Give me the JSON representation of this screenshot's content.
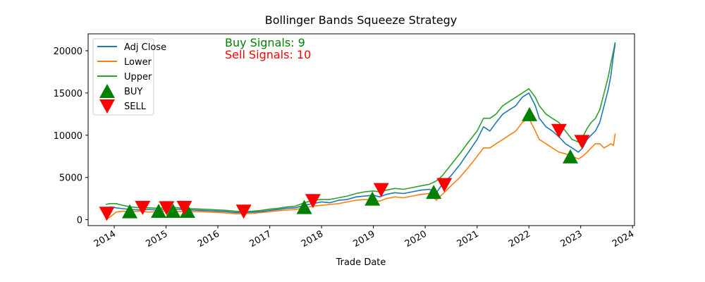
{
  "chart_data": {
    "type": "line",
    "title": "Bollinger Bands Squeeze Strategy",
    "xlabel": "Trade Date",
    "ylabel": "",
    "xlim": [
      "2013-07-01",
      "2024-01-15"
    ],
    "ylim": [
      -700,
      22000
    ],
    "x_ticks": [
      "2014",
      "2015",
      "2016",
      "2017",
      "2018",
      "2019",
      "2020",
      "2021",
      "2022",
      "2023",
      "2024"
    ],
    "y_ticks": [
      0,
      5000,
      10000,
      15000,
      20000
    ],
    "grid": false,
    "legend_placement": "top-left",
    "colors": {
      "adj_close": "#1f77b4",
      "lower": "#ff7f0e",
      "upper": "#2ca02c",
      "buy": "#008000",
      "sell": "#ff0000"
    },
    "series": [
      {
        "name": "Adj Close",
        "x": [
          "2013-11-01",
          "2013-12-01",
          "2014-01-15",
          "2014-03-01",
          "2014-05-01",
          "2014-07-01",
          "2014-09-01",
          "2014-11-01",
          "2015-01-01",
          "2015-03-01",
          "2015-05-01",
          "2015-07-01",
          "2015-09-01",
          "2015-11-01",
          "2016-01-01",
          "2016-03-01",
          "2016-05-01",
          "2016-07-01",
          "2016-09-01",
          "2016-11-01",
          "2017-01-01",
          "2017-03-01",
          "2017-05-01",
          "2017-07-01",
          "2017-09-01",
          "2017-11-01",
          "2018-01-01",
          "2018-03-01",
          "2018-05-01",
          "2018-07-01",
          "2018-09-01",
          "2018-11-01",
          "2019-01-01",
          "2019-02-15",
          "2019-04-01",
          "2019-06-01",
          "2019-08-01",
          "2019-10-01",
          "2019-12-01",
          "2020-02-01",
          "2020-03-20",
          "2020-05-01",
          "2020-07-01",
          "2020-09-01",
          "2020-11-01",
          "2021-01-01",
          "2021-02-15",
          "2021-04-01",
          "2021-05-15",
          "2021-07-01",
          "2021-08-15",
          "2021-10-01",
          "2021-11-15",
          "2022-01-01",
          "2022-02-15",
          "2022-03-15",
          "2022-05-01",
          "2022-06-15",
          "2022-08-01",
          "2022-09-15",
          "2022-11-01",
          "2022-12-15",
          "2023-01-15",
          "2023-02-15",
          "2023-03-15",
          "2023-04-15",
          "2023-05-15",
          "2023-06-15",
          "2023-07-15",
          "2023-08-01",
          "2023-08-20",
          "2023-09-01"
        ],
        "values": [
          800,
          1500,
          1400,
          1300,
          1200,
          1150,
          1200,
          1150,
          1200,
          1250,
          1200,
          1150,
          1100,
          1050,
          1000,
          950,
          850,
          850,
          900,
          950,
          1100,
          1200,
          1350,
          1400,
          1700,
          1900,
          2100,
          2000,
          2300,
          2400,
          2700,
          2800,
          2900,
          2700,
          3000,
          3200,
          3100,
          3300,
          3500,
          3600,
          3200,
          4200,
          5200,
          6500,
          8000,
          9500,
          11000,
          10500,
          11500,
          12500,
          13000,
          13500,
          14500,
          15000,
          13500,
          12000,
          11000,
          10500,
          9800,
          9000,
          8500,
          8000,
          8500,
          9500,
          10000,
          10500,
          11500,
          13500,
          15500,
          17000,
          19500,
          20800
        ]
      },
      {
        "name": "Lower",
        "x": [
          "2013-11-01",
          "2013-12-01",
          "2014-01-15",
          "2014-03-01",
          "2014-05-01",
          "2014-07-01",
          "2014-09-01",
          "2014-11-01",
          "2015-01-01",
          "2015-03-01",
          "2015-05-01",
          "2015-07-01",
          "2015-09-01",
          "2015-11-01",
          "2016-01-01",
          "2016-03-01",
          "2016-05-01",
          "2016-07-01",
          "2016-09-01",
          "2016-11-01",
          "2017-01-01",
          "2017-03-01",
          "2017-05-01",
          "2017-07-01",
          "2017-09-01",
          "2017-11-01",
          "2018-01-01",
          "2018-03-01",
          "2018-05-01",
          "2018-07-01",
          "2018-09-01",
          "2018-11-01",
          "2019-01-01",
          "2019-02-15",
          "2019-04-01",
          "2019-06-01",
          "2019-08-01",
          "2019-10-01",
          "2019-12-01",
          "2020-02-01",
          "2020-03-20",
          "2020-05-01",
          "2020-07-01",
          "2020-09-01",
          "2020-11-01",
          "2021-01-01",
          "2021-02-15",
          "2021-04-01",
          "2021-05-15",
          "2021-07-01",
          "2021-08-15",
          "2021-10-01",
          "2021-11-15",
          "2022-01-01",
          "2022-02-15",
          "2022-03-15",
          "2022-05-01",
          "2022-06-15",
          "2022-08-01",
          "2022-09-15",
          "2022-11-01",
          "2022-12-15",
          "2023-01-15",
          "2023-02-15",
          "2023-03-15",
          "2023-04-15",
          "2023-05-15",
          "2023-06-15",
          "2023-07-15",
          "2023-08-01",
          "2023-08-20",
          "2023-09-01"
        ],
        "values": [
          0,
          300,
          900,
          1000,
          950,
          1000,
          900,
          950,
          1000,
          1000,
          950,
          950,
          950,
          900,
          850,
          800,
          700,
          700,
          750,
          850,
          950,
          1050,
          1150,
          1200,
          1400,
          1600,
          1700,
          1800,
          1900,
          2100,
          2300,
          2400,
          2300,
          2200,
          2500,
          2700,
          2600,
          2800,
          3000,
          3100,
          2300,
          3000,
          4000,
          5000,
          6200,
          7500,
          8500,
          8500,
          9000,
          9500,
          10000,
          10500,
          11500,
          12000,
          10500,
          9500,
          9000,
          8500,
          8000,
          7800,
          7500,
          7200,
          7500,
          8000,
          8500,
          9000,
          9000,
          8500,
          8800,
          9000,
          8800,
          10200
        ]
      },
      {
        "name": "Upper",
        "x": [
          "2013-11-01",
          "2013-12-01",
          "2014-01-15",
          "2014-03-01",
          "2014-05-01",
          "2014-07-01",
          "2014-09-01",
          "2014-11-01",
          "2015-01-01",
          "2015-03-01",
          "2015-05-01",
          "2015-07-01",
          "2015-09-01",
          "2015-11-01",
          "2016-01-01",
          "2016-03-01",
          "2016-05-01",
          "2016-07-01",
          "2016-09-01",
          "2016-11-01",
          "2017-01-01",
          "2017-03-01",
          "2017-05-01",
          "2017-07-01",
          "2017-09-01",
          "2017-11-01",
          "2018-01-01",
          "2018-03-01",
          "2018-05-01",
          "2018-07-01",
          "2018-09-01",
          "2018-11-01",
          "2019-01-01",
          "2019-02-15",
          "2019-04-01",
          "2019-06-01",
          "2019-08-01",
          "2019-10-01",
          "2019-12-01",
          "2020-02-01",
          "2020-03-20",
          "2020-05-01",
          "2020-07-01",
          "2020-09-01",
          "2020-11-01",
          "2021-01-01",
          "2021-02-15",
          "2021-04-01",
          "2021-05-15",
          "2021-07-01",
          "2021-08-15",
          "2021-10-01",
          "2021-11-15",
          "2022-01-01",
          "2022-02-15",
          "2022-03-15",
          "2022-05-01",
          "2022-06-15",
          "2022-08-01",
          "2022-09-15",
          "2022-11-01",
          "2022-12-15",
          "2023-01-15",
          "2023-02-15",
          "2023-03-15",
          "2023-04-15",
          "2023-05-15",
          "2023-06-15",
          "2023-07-15",
          "2023-08-01",
          "2023-08-20",
          "2023-09-01"
        ],
        "values": [
          1800,
          1900,
          1900,
          1700,
          1500,
          1400,
          1400,
          1350,
          1400,
          1450,
          1350,
          1300,
          1250,
          1200,
          1150,
          1100,
          1000,
          950,
          1000,
          1100,
          1250,
          1350,
          1500,
          1600,
          2000,
          2300,
          2400,
          2400,
          2600,
          2800,
          3100,
          3300,
          3400,
          3300,
          3500,
          3700,
          3600,
          3800,
          4000,
          4200,
          4600,
          5200,
          6500,
          7800,
          9200,
          10500,
          12000,
          12000,
          12500,
          13500,
          14000,
          14500,
          15000,
          15500,
          14500,
          13500,
          12500,
          12000,
          11500,
          10500,
          9500,
          9200,
          9800,
          10800,
          11500,
          12000,
          13000,
          15000,
          17000,
          18500,
          20000,
          21000
        ]
      }
    ],
    "legend": [
      "Adj Close",
      "Lower",
      "Upper",
      "BUY",
      "SELL"
    ],
    "buy_signals": {
      "name": "BUY",
      "points": [
        {
          "date": "2014-04-20",
          "value": 1000
        },
        {
          "date": "2014-11-10",
          "value": 1050
        },
        {
          "date": "2015-02-20",
          "value": 1050
        },
        {
          "date": "2015-06-01",
          "value": 1050
        },
        {
          "date": "2017-09-01",
          "value": 1500
        },
        {
          "date": "2018-12-25",
          "value": 2500
        },
        {
          "date": "2020-03-01",
          "value": 3300
        },
        {
          "date": "2022-01-05",
          "value": 12500
        },
        {
          "date": "2022-10-20",
          "value": 7500
        }
      ]
    },
    "sell_signals": {
      "name": "SELL",
      "points": [
        {
          "date": "2013-11-10",
          "value": 700
        },
        {
          "date": "2014-07-20",
          "value": 1400
        },
        {
          "date": "2015-01-05",
          "value": 1350
        },
        {
          "date": "2015-05-10",
          "value": 1400
        },
        {
          "date": "2016-07-01",
          "value": 950
        },
        {
          "date": "2017-11-01",
          "value": 2200
        },
        {
          "date": "2019-02-25",
          "value": 3500
        },
        {
          "date": "2020-05-15",
          "value": 4100
        },
        {
          "date": "2022-08-01",
          "value": 10500
        },
        {
          "date": "2023-01-10",
          "value": 9200
        }
      ]
    },
    "annotations": [
      {
        "text": "Buy Signals: 9",
        "color": "#008000"
      },
      {
        "text": "Sell Signals: 10",
        "color": "#ff0000"
      }
    ]
  }
}
